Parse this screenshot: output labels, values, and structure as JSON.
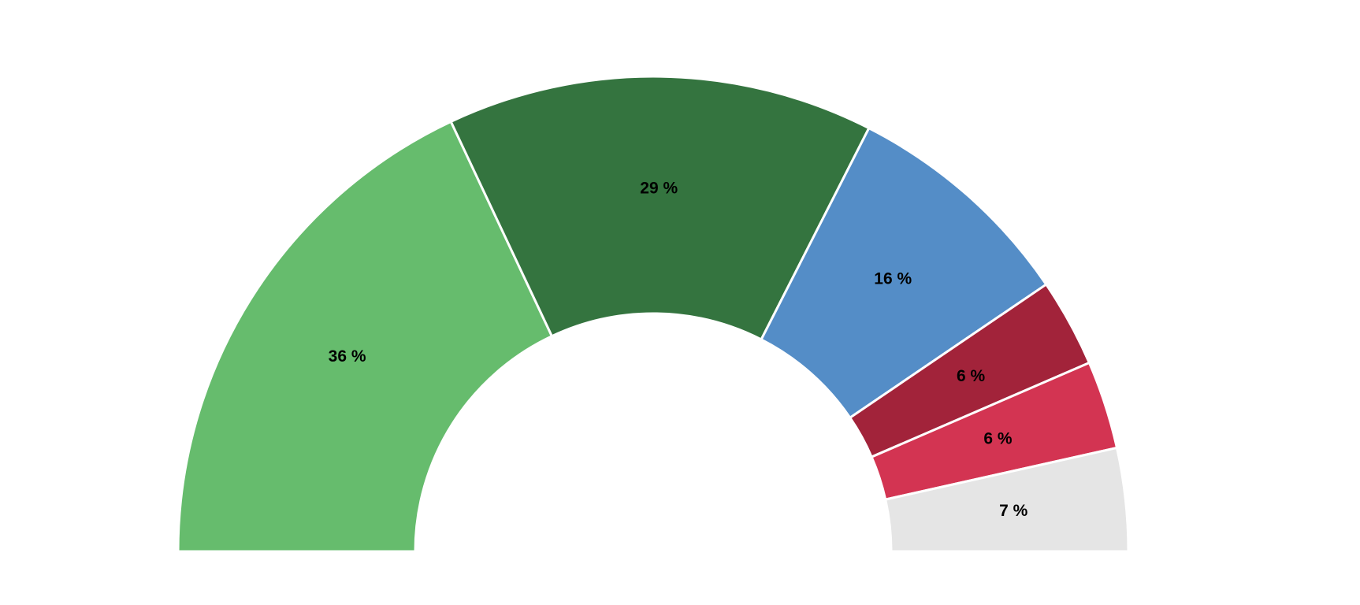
{
  "chart_data": {
    "type": "pie",
    "variant": "semicircle-donut",
    "title": "",
    "legend": "none",
    "slices": [
      {
        "value": 36,
        "label": "36 %",
        "color": "#66bc6d"
      },
      {
        "value": 29,
        "label": "29 %",
        "color": "#34743f"
      },
      {
        "value": 16,
        "label": "16 %",
        "color": "#548dc7"
      },
      {
        "value": 6,
        "label": "6 %",
        "color": "#a2233a"
      },
      {
        "value": 6,
        "label": "6 %",
        "color": "#d33452"
      },
      {
        "value": 7,
        "label": "7 %",
        "color": "#e5e5e5"
      }
    ]
  }
}
